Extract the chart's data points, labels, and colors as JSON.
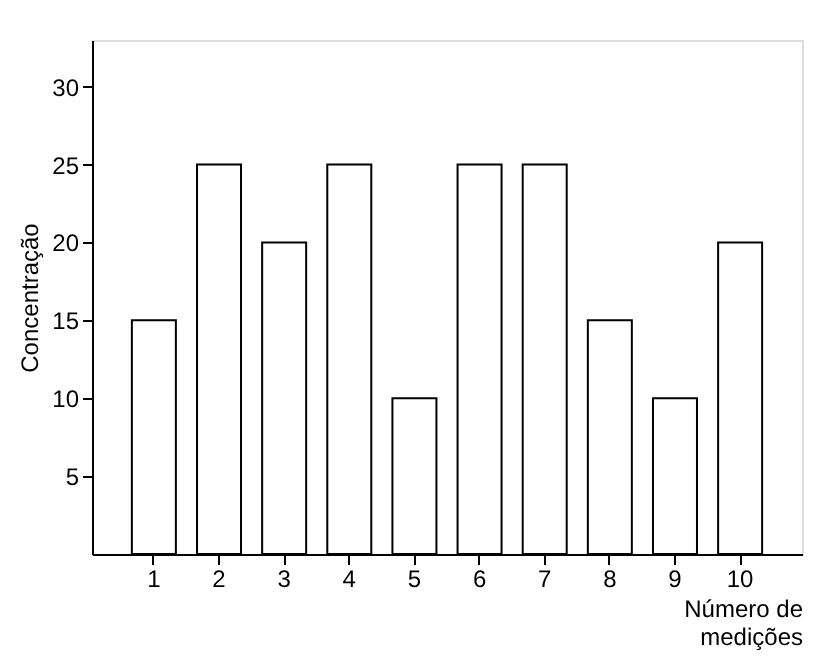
{
  "chart_data": {
    "type": "bar",
    "xlabel": "Número de\nmedições",
    "ylabel": "Concentração",
    "categories": [
      "1",
      "2",
      "3",
      "4",
      "5",
      "6",
      "7",
      "8",
      "9",
      "10"
    ],
    "values": [
      15,
      25,
      20,
      25,
      10,
      25,
      25,
      15,
      10,
      20
    ],
    "color": "#ffffff",
    "ylim": [
      0,
      33
    ],
    "yticks": [
      5,
      10,
      15,
      20,
      25,
      30
    ],
    "grid": false
  }
}
